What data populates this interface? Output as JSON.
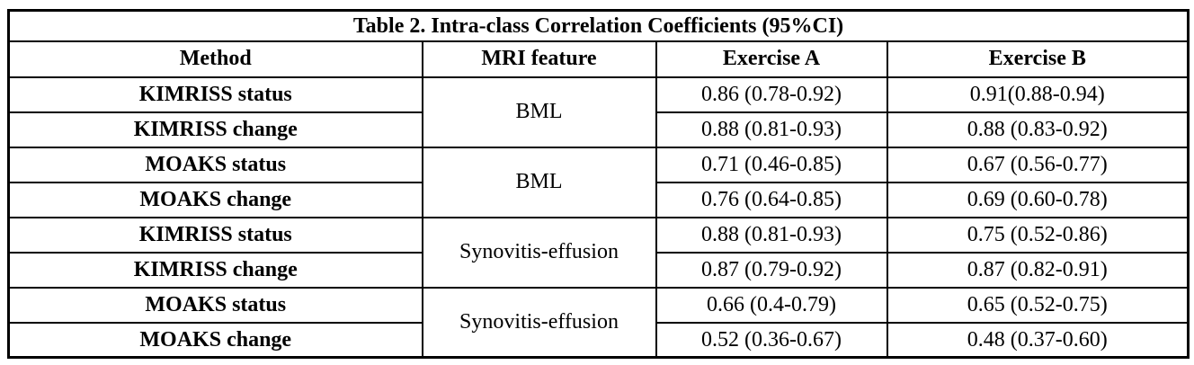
{
  "table": {
    "title": "Table 2. Intra-class Correlation Coefficients (95%CI)",
    "headers": [
      "Method",
      "MRI feature",
      "Exercise A",
      "Exercise B"
    ],
    "groups": [
      {
        "feature": "BML",
        "rows": [
          {
            "method": "KIMRISS status",
            "exercise_a": "0.86 (0.78-0.92)",
            "exercise_b": "0.91(0.88-0.94)"
          },
          {
            "method": "KIMRISS change",
            "exercise_a": "0.88 (0.81-0.93)",
            "exercise_b": "0.88 (0.83-0.92)"
          }
        ]
      },
      {
        "feature": "BML",
        "rows": [
          {
            "method": "MOAKS status",
            "exercise_a": "0.71 (0.46-0.85)",
            "exercise_b": "0.67 (0.56-0.77)"
          },
          {
            "method": "MOAKS change",
            "exercise_a": "0.76 (0.64-0.85)",
            "exercise_b": "0.69 (0.60-0.78)"
          }
        ]
      },
      {
        "feature": "Synovitis-effusion",
        "rows": [
          {
            "method": "KIMRISS status",
            "exercise_a": "0.88 (0.81-0.93)",
            "exercise_b": "0.75 (0.52-0.86)"
          },
          {
            "method": "KIMRISS change",
            "exercise_a": "0.87 (0.79-0.92)",
            "exercise_b": "0.87 (0.82-0.91)"
          }
        ]
      },
      {
        "feature": "Synovitis-effusion",
        "rows": [
          {
            "method": "MOAKS status",
            "exercise_a": "0.66 (0.4-0.79)",
            "exercise_b": "0.65 (0.52-0.75)"
          },
          {
            "method": "MOAKS change",
            "exercise_a": "0.52 (0.36-0.67)",
            "exercise_b": "0.48 (0.37-0.60)"
          }
        ]
      }
    ]
  }
}
